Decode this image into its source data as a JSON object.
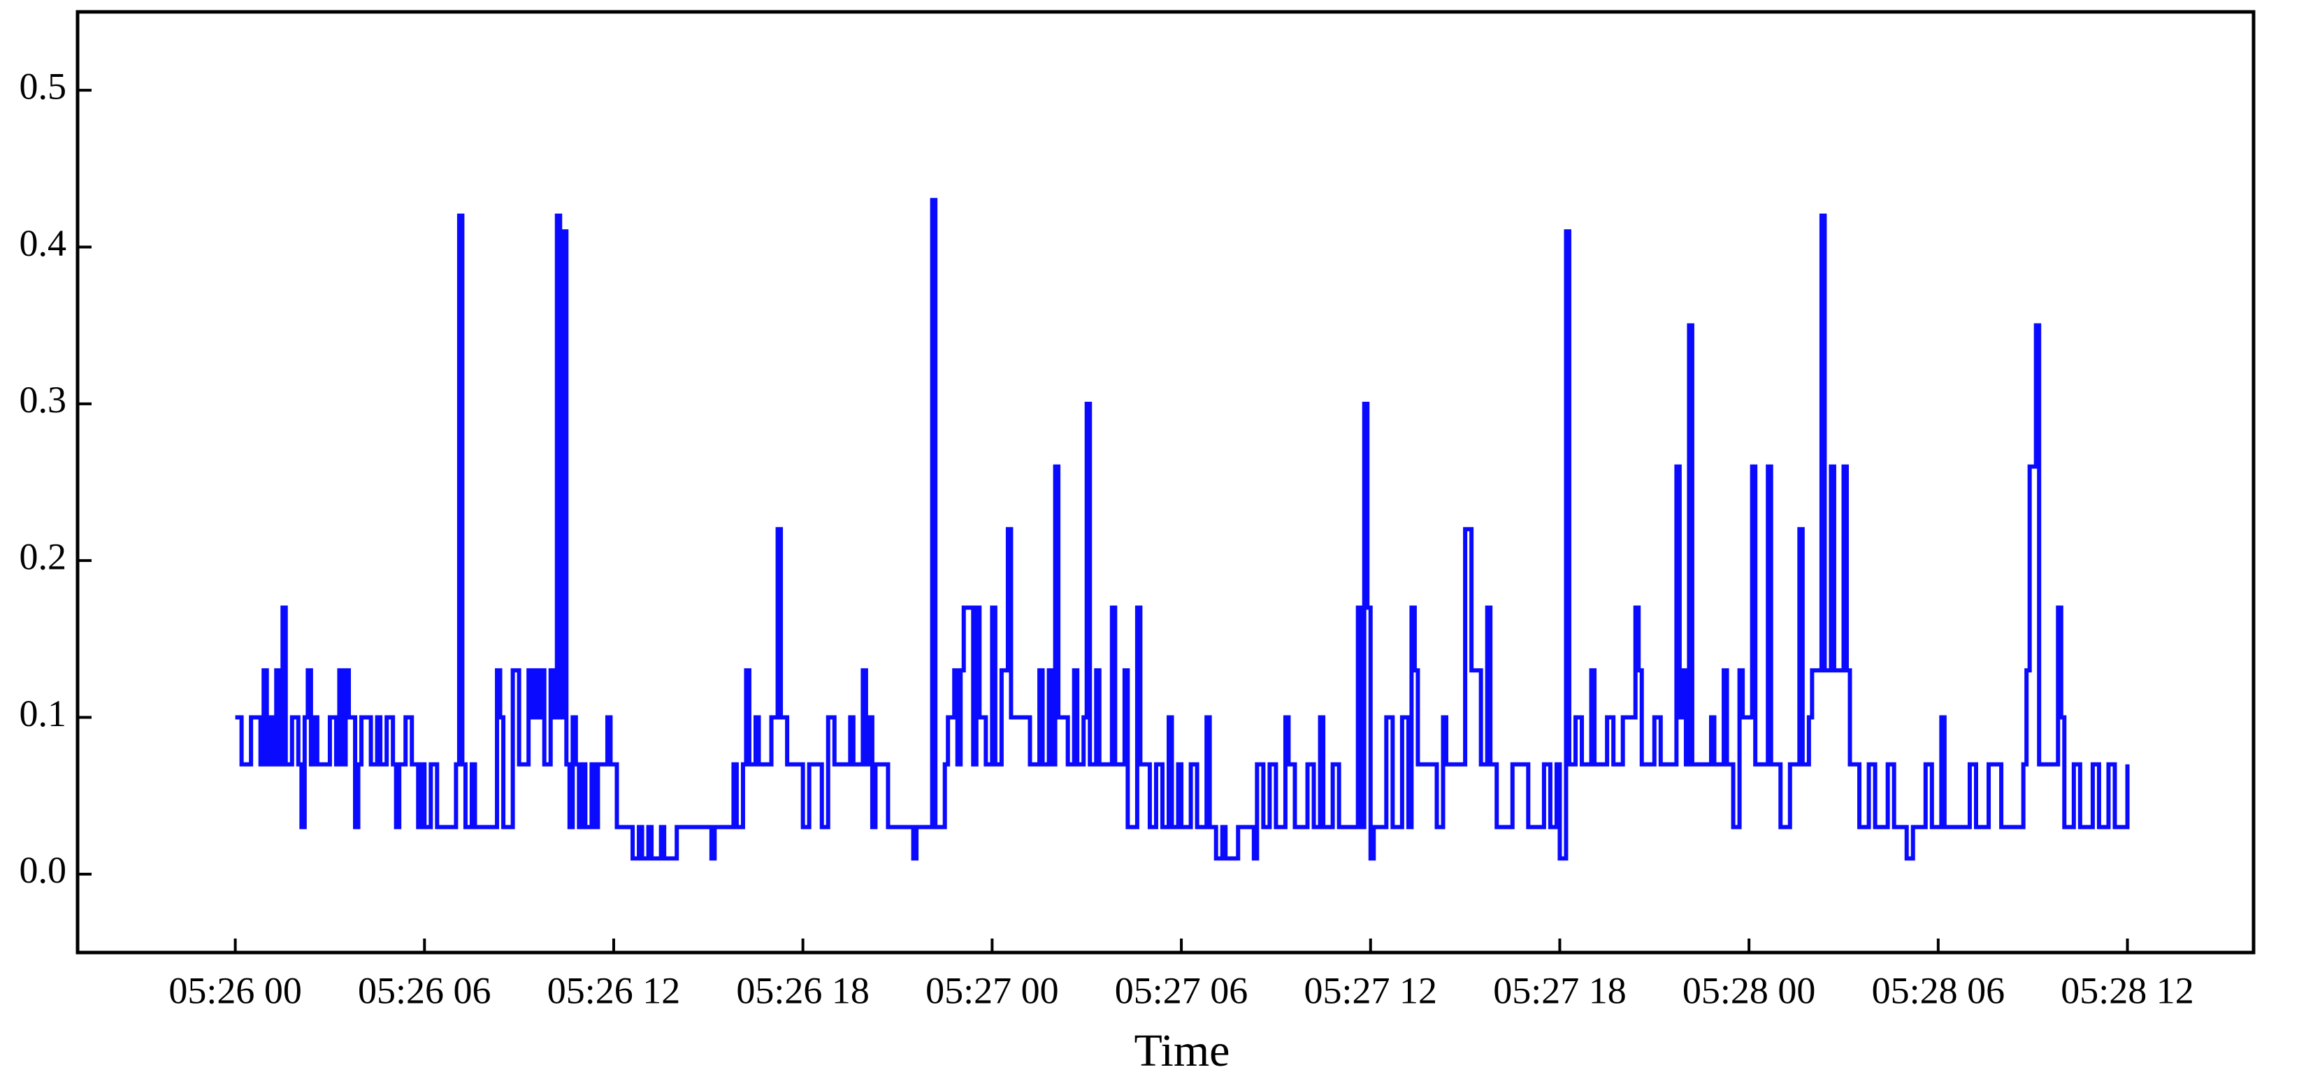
{
  "chart_data": {
    "type": "line",
    "step": "post",
    "color": "#0a0aff",
    "x_label": "Time",
    "xlim": [
      -5,
      64
    ],
    "xticks": [
      {
        "value": 0,
        "label": "05:26 00"
      },
      {
        "value": 6,
        "label": "05:26 06"
      },
      {
        "value": 12,
        "label": "05:26 12"
      },
      {
        "value": 18,
        "label": "05:26 18"
      },
      {
        "value": 24,
        "label": "05:27 00"
      },
      {
        "value": 30,
        "label": "05:27 06"
      },
      {
        "value": 36,
        "label": "05:27 12"
      },
      {
        "value": 42,
        "label": "05:27 18"
      },
      {
        "value": 48,
        "label": "05:28 00"
      },
      {
        "value": 54,
        "label": "05:28 06"
      },
      {
        "value": 60,
        "label": "05:28 12"
      }
    ],
    "ylim": [
      -0.05,
      0.55
    ],
    "yticks": [
      {
        "value": 0,
        "label": "0.0"
      },
      0.1,
      0.2,
      0.3,
      0.4,
      0.5
    ],
    "x": [
      0,
      0.2,
      0.5,
      0.8,
      0.9,
      1.0,
      1.1,
      1.2,
      1.3,
      1.4,
      1.5,
      1.6,
      1.8,
      2.0,
      2.1,
      2.2,
      2.3,
      2.4,
      2.5,
      2.6,
      3.0,
      3.2,
      3.3,
      3.4,
      3.5,
      3.6,
      3.8,
      3.9,
      4.0,
      4.3,
      4.5,
      4.6,
      4.8,
      5.0,
      5.1,
      5.2,
      5.4,
      5.6,
      5.8,
      5.9,
      6.0,
      6.2,
      6.4,
      7.0,
      7.1,
      7.2,
      7.3,
      7.5,
      7.6,
      8.3,
      8.4,
      8.5,
      8.8,
      9.0,
      9.3,
      9.4,
      9.5,
      9.6,
      9.7,
      9.8,
      10.0,
      10.1,
      10.2,
      10.3,
      10.4,
      10.5,
      10.6,
      10.7,
      10.8,
      10.9,
      11.0,
      11.1,
      11.3,
      11.4,
      11.5,
      11.8,
      11.9,
      12.1,
      12.6,
      12.8,
      12.9,
      13.1,
      13.2,
      13.5,
      13.6,
      14.0,
      15.1,
      15.2,
      15.8,
      15.9,
      16.1,
      16.2,
      16.3,
      16.5,
      16.6,
      17.0,
      17.2,
      17.3,
      17.5,
      18.0,
      18.2,
      18.6,
      18.8,
      19.0,
      19.5,
      19.6,
      19.9,
      20.0,
      20.1,
      20.2,
      20.3,
      20.7,
      21.5,
      21.6,
      22.1,
      22.2,
      22.5,
      22.6,
      22.8,
      22.9,
      23.0,
      23.1,
      23.4,
      23.5,
      23.6,
      23.8,
      24.0,
      24.1,
      24.3,
      24.5,
      24.6,
      25.2,
      25.5,
      25.6,
      25.8,
      25.9,
      26.0,
      26.1,
      26.4,
      26.6,
      26.7,
      26.9,
      27.0,
      27.1,
      27.3,
      27.4,
      27.8,
      27.9,
      28.2,
      28.3,
      28.6,
      28.7,
      29.0,
      29.2,
      29.4,
      29.6,
      29.7,
      29.9,
      30.0,
      30.3,
      30.5,
      30.8,
      30.9,
      31.1,
      31.3,
      31.4,
      31.8,
      32.3,
      32.4,
      32.6,
      32.8,
      33.0,
      33.3,
      33.4,
      33.6,
      34.0,
      34.2,
      34.4,
      34.5,
      34.8,
      35.0,
      35.6,
      35.7,
      35.8,
      35.9,
      36.0,
      36.1,
      36.5,
      36.7,
      37.0,
      37.2,
      37.3,
      37.4,
      37.5,
      38.1,
      38.3,
      38.4,
      39.0,
      39.2,
      39.5,
      39.7,
      39.8,
      40.0,
      40.5,
      41.0,
      41.5,
      41.7,
      41.9,
      42.0,
      42.2,
      42.3,
      42.5,
      42.7,
      43.0,
      43.1,
      43.5,
      43.7,
      44.0,
      44.4,
      44.5,
      44.6,
      45.0,
      45.2,
      45.7,
      45.8,
      45.9,
      46.0,
      46.1,
      46.2,
      46.8,
      46.9,
      47.2,
      47.3,
      47.5,
      47.7,
      47.8,
      48.1,
      48.2,
      48.6,
      48.7,
      49.0,
      49.3,
      49.6,
      49.7,
      49.9,
      50.0,
      50.3,
      50.4,
      50.6,
      50.7,
      51.0,
      51.1,
      51.2,
      51.5,
      51.8,
      52.0,
      52.4,
      52.6,
      53.0,
      53.2,
      53.6,
      53.8,
      54.1,
      54.2,
      55.0,
      55.2,
      55.6,
      56.0,
      56.7,
      56.8,
      56.9,
      57.1,
      57.2,
      57.8,
      57.9,
      58.0,
      58.3,
      58.5,
      58.9,
      59.1,
      59.4,
      59.6,
      60.0
    ],
    "values": [
      0.1,
      0.07,
      0.1,
      0.07,
      0.13,
      0.07,
      0.1,
      0.07,
      0.13,
      0.07,
      0.17,
      0.07,
      0.1,
      0.07,
      0.03,
      0.1,
      0.13,
      0.07,
      0.1,
      0.07,
      0.1,
      0.07,
      0.13,
      0.07,
      0.13,
      0.1,
      0.03,
      0.07,
      0.1,
      0.07,
      0.1,
      0.07,
      0.1,
      0.07,
      0.03,
      0.07,
      0.1,
      0.07,
      0.03,
      0.07,
      0.03,
      0.07,
      0.03,
      0.07,
      0.42,
      0.07,
      0.03,
      0.07,
      0.03,
      0.13,
      0.1,
      0.03,
      0.13,
      0.07,
      0.13,
      0.1,
      0.13,
      0.1,
      0.13,
      0.07,
      0.13,
      0.1,
      0.42,
      0.1,
      0.41,
      0.07,
      0.03,
      0.1,
      0.07,
      0.03,
      0.07,
      0.03,
      0.07,
      0.03,
      0.07,
      0.1,
      0.07,
      0.03,
      0.01,
      0.03,
      0.01,
      0.03,
      0.01,
      0.03,
      0.01,
      0.03,
      0.01,
      0.03,
      0.07,
      0.03,
      0.07,
      0.13,
      0.07,
      0.1,
      0.07,
      0.1,
      0.22,
      0.1,
      0.07,
      0.03,
      0.07,
      0.03,
      0.1,
      0.07,
      0.1,
      0.07,
      0.13,
      0.07,
      0.1,
      0.03,
      0.07,
      0.03,
      0.01,
      0.03,
      0.43,
      0.03,
      0.07,
      0.1,
      0.13,
      0.07,
      0.13,
      0.17,
      0.07,
      0.17,
      0.1,
      0.07,
      0.17,
      0.07,
      0.13,
      0.22,
      0.1,
      0.07,
      0.13,
      0.07,
      0.13,
      0.07,
      0.26,
      0.1,
      0.07,
      0.13,
      0.07,
      0.1,
      0.3,
      0.07,
      0.13,
      0.07,
      0.17,
      0.07,
      0.13,
      0.03,
      0.17,
      0.07,
      0.03,
      0.07,
      0.03,
      0.1,
      0.03,
      0.07,
      0.03,
      0.07,
      0.03,
      0.1,
      0.03,
      0.01,
      0.03,
      0.01,
      0.03,
      0.01,
      0.07,
      0.03,
      0.07,
      0.03,
      0.1,
      0.07,
      0.03,
      0.07,
      0.03,
      0.1,
      0.03,
      0.07,
      0.03,
      0.17,
      0.03,
      0.3,
      0.17,
      0.01,
      0.03,
      0.1,
      0.03,
      0.1,
      0.03,
      0.17,
      0.13,
      0.07,
      0.03,
      0.1,
      0.07,
      0.22,
      0.13,
      0.07,
      0.17,
      0.07,
      0.03,
      0.07,
      0.03,
      0.07,
      0.03,
      0.07,
      0.01,
      0.41,
      0.07,
      0.1,
      0.07,
      0.13,
      0.07,
      0.1,
      0.07,
      0.1,
      0.17,
      0.13,
      0.07,
      0.1,
      0.07,
      0.26,
      0.1,
      0.13,
      0.07,
      0.35,
      0.07,
      0.1,
      0.07,
      0.13,
      0.07,
      0.03,
      0.13,
      0.1,
      0.26,
      0.07,
      0.26,
      0.07,
      0.03,
      0.07,
      0.22,
      0.07,
      0.1,
      0.13,
      0.42,
      0.13,
      0.26,
      0.13,
      0.26,
      0.13,
      0.07,
      0.03,
      0.07,
      0.03,
      0.07,
      0.03,
      0.01,
      0.03,
      0.07,
      0.03,
      0.1,
      0.03,
      0.07,
      0.03,
      0.07,
      0.03,
      0.07,
      0.13,
      0.26,
      0.35,
      0.07,
      0.17,
      0.1,
      0.03,
      0.07,
      0.03,
      0.07,
      0.03,
      0.07,
      0.03,
      0.07
    ]
  }
}
